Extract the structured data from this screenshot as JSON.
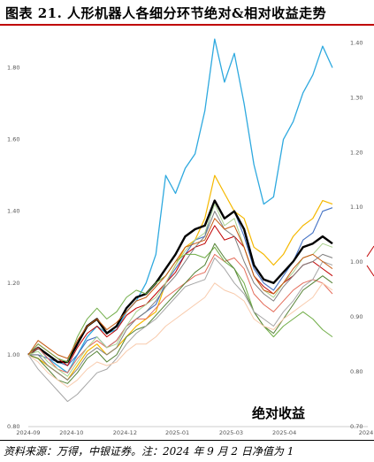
{
  "title": "图表 21. 人形机器人各细分环节绝对&相对收益走势",
  "source": "资料来源：万得，中银证券。注：2024 年 9 月 2 日净值为 1",
  "chart_data": {
    "type": "line",
    "title": "",
    "annotation": "绝对收益",
    "x_ticks": [
      "2024-09",
      "2024-10",
      "2024-12",
      "2025-01",
      "2025-03",
      "2025-04"
    ],
    "x_tick_pos": [
      0,
      0.142,
      0.318,
      0.49,
      0.667,
      0.842
    ],
    "y_left": {
      "min": 0.8,
      "max": 1.9,
      "ticks": [
        0.8,
        1.0,
        1.2,
        1.4,
        1.6,
        1.8
      ],
      "tick_labels": [
        "0.80",
        "1.00",
        "1.20",
        "1.40",
        "1.60",
        "1.80"
      ]
    },
    "y_right": {
      "min": 0.7,
      "max": 1.42,
      "ticks": [
        0.7,
        0.8,
        0.9,
        1.0,
        1.1,
        1.2,
        1.3,
        1.4
      ],
      "tick_labels": [
        "0.70",
        "0.80",
        "0.90",
        "1.00",
        "1.10",
        "1.20",
        "1.30",
        "1.40"
      ]
    },
    "series": [
      {
        "name": "",
        "color": "#2ea9df",
        "width": 1.3,
        "values": [
          1.0,
          1.02,
          0.99,
          0.97,
          0.95,
          1.0,
          1.05,
          1.08,
          1.06,
          1.07,
          1.12,
          1.15,
          1.2,
          1.28,
          1.5,
          1.45,
          1.52,
          1.56,
          1.68,
          1.88,
          1.76,
          1.84,
          1.7,
          1.53,
          1.42,
          1.44,
          1.6,
          1.65,
          1.73,
          1.78,
          1.86,
          1.8
        ]
      },
      {
        "name": "",
        "color": "#f5b800",
        "width": 1.2,
        "values": [
          1.0,
          0.99,
          0.97,
          0.95,
          0.93,
          0.97,
          1.01,
          1.03,
          1.0,
          1.02,
          1.05,
          1.08,
          1.1,
          1.12,
          1.2,
          1.25,
          1.3,
          1.32,
          1.38,
          1.5,
          1.45,
          1.4,
          1.38,
          1.3,
          1.28,
          1.25,
          1.28,
          1.33,
          1.36,
          1.38,
          1.43,
          1.42
        ]
      },
      {
        "name": "",
        "color": "#4472c4",
        "width": 1.1,
        "values": [
          1.0,
          1.0,
          0.99,
          0.98,
          0.97,
          1.0,
          1.04,
          1.05,
          1.02,
          1.04,
          1.08,
          1.1,
          1.12,
          1.14,
          1.2,
          1.24,
          1.28,
          1.32,
          1.33,
          1.43,
          1.38,
          1.4,
          1.33,
          1.24,
          1.2,
          1.18,
          1.22,
          1.26,
          1.32,
          1.34,
          1.4,
          1.41
        ]
      },
      {
        "name": "",
        "color": "#000000",
        "width": 2.4,
        "values": [
          1.0,
          1.02,
          1.0,
          0.98,
          0.98,
          1.03,
          1.08,
          1.1,
          1.06,
          1.08,
          1.13,
          1.16,
          1.17,
          1.2,
          1.24,
          1.28,
          1.33,
          1.35,
          1.36,
          1.43,
          1.38,
          1.4,
          1.35,
          1.25,
          1.21,
          1.2,
          1.23,
          1.26,
          1.3,
          1.31,
          1.33,
          1.31
        ]
      },
      {
        "name": "",
        "color": "#c00000",
        "width": 1.0,
        "values": [
          1.0,
          1.03,
          1.01,
          0.99,
          0.97,
          1.02,
          1.06,
          1.08,
          1.05,
          1.07,
          1.11,
          1.13,
          1.14,
          1.17,
          1.2,
          1.23,
          1.28,
          1.3,
          1.31,
          1.36,
          1.32,
          1.33,
          1.3,
          1.22,
          1.19,
          1.17,
          1.2,
          1.22,
          1.25,
          1.26,
          1.24,
          1.22
        ]
      },
      {
        "name": "",
        "color": "#7f7f7f",
        "width": 1.0,
        "values": [
          1.0,
          1.0,
          0.97,
          0.95,
          0.93,
          0.96,
          1.0,
          1.02,
          1.0,
          1.02,
          1.07,
          1.1,
          1.12,
          1.15,
          1.19,
          1.22,
          1.26,
          1.3,
          1.33,
          1.4,
          1.35,
          1.33,
          1.26,
          1.2,
          1.17,
          1.15,
          1.19,
          1.22,
          1.25,
          1.26,
          1.28,
          1.27
        ]
      },
      {
        "name": "",
        "color": "#e46c5a",
        "width": 1.0,
        "values": [
          1.0,
          1.02,
          0.99,
          0.96,
          0.95,
          0.99,
          1.02,
          1.04,
          1.02,
          1.04,
          1.08,
          1.1,
          1.1,
          1.13,
          1.16,
          1.18,
          1.2,
          1.22,
          1.23,
          1.28,
          1.26,
          1.27,
          1.24,
          1.17,
          1.14,
          1.12,
          1.15,
          1.18,
          1.2,
          1.21,
          1.2,
          1.17
        ]
      },
      {
        "name": "",
        "color": "#a9d18e",
        "width": 1.0,
        "values": [
          1.0,
          1.01,
          0.98,
          0.96,
          0.94,
          0.98,
          1.02,
          1.05,
          1.02,
          1.03,
          1.08,
          1.12,
          1.14,
          1.16,
          1.2,
          1.25,
          1.29,
          1.32,
          1.34,
          1.42,
          1.36,
          1.38,
          1.3,
          1.22,
          1.18,
          1.16,
          1.2,
          1.23,
          1.27,
          1.28,
          1.31,
          1.3
        ]
      },
      {
        "name": "",
        "color": "#70ad47",
        "width": 1.0,
        "values": [
          1.0,
          1.03,
          1.01,
          0.99,
          0.98,
          1.05,
          1.1,
          1.13,
          1.1,
          1.12,
          1.16,
          1.18,
          1.17,
          1.2,
          1.22,
          1.26,
          1.28,
          1.28,
          1.27,
          1.3,
          1.26,
          1.24,
          1.2,
          1.12,
          1.08,
          1.05,
          1.08,
          1.1,
          1.12,
          1.1,
          1.07,
          1.05
        ]
      },
      {
        "name": "",
        "color": "#548235",
        "width": 1.0,
        "values": [
          1.0,
          0.99,
          0.96,
          0.93,
          0.92,
          0.95,
          0.99,
          1.01,
          0.98,
          1.0,
          1.05,
          1.07,
          1.08,
          1.11,
          1.14,
          1.17,
          1.2,
          1.23,
          1.25,
          1.31,
          1.27,
          1.24,
          1.18,
          1.12,
          1.08,
          1.06,
          1.1,
          1.14,
          1.18,
          1.2,
          1.22,
          1.2
        ]
      },
      {
        "name": "",
        "color": "#a5a5a5",
        "width": 1.0,
        "values": [
          1.0,
          0.96,
          0.93,
          0.9,
          0.87,
          0.89,
          0.92,
          0.95,
          0.96,
          0.99,
          1.03,
          1.06,
          1.08,
          1.1,
          1.13,
          1.16,
          1.19,
          1.2,
          1.21,
          1.27,
          1.24,
          1.2,
          1.17,
          1.12,
          1.1,
          1.08,
          1.12,
          1.15,
          1.19,
          1.21,
          1.26,
          1.25
        ]
      },
      {
        "name": "",
        "color": "#f8cbad",
        "width": 1.0,
        "values": [
          1.0,
          0.98,
          0.95,
          0.93,
          0.91,
          0.93,
          0.96,
          0.98,
          0.97,
          0.98,
          1.01,
          1.03,
          1.03,
          1.05,
          1.08,
          1.1,
          1.12,
          1.14,
          1.16,
          1.2,
          1.18,
          1.17,
          1.15,
          1.1,
          1.08,
          1.07,
          1.1,
          1.12,
          1.14,
          1.16,
          1.2,
          1.18
        ]
      },
      {
        "name": "",
        "color": "#c55a11",
        "width": 1.0,
        "values": [
          1.0,
          1.04,
          1.02,
          1.0,
          0.99,
          1.04,
          1.08,
          1.1,
          1.07,
          1.09,
          1.12,
          1.15,
          1.16,
          1.19,
          1.22,
          1.26,
          1.3,
          1.31,
          1.32,
          1.38,
          1.35,
          1.36,
          1.3,
          1.22,
          1.18,
          1.17,
          1.2,
          1.24,
          1.27,
          1.28,
          1.26,
          1.24
        ]
      }
    ]
  }
}
